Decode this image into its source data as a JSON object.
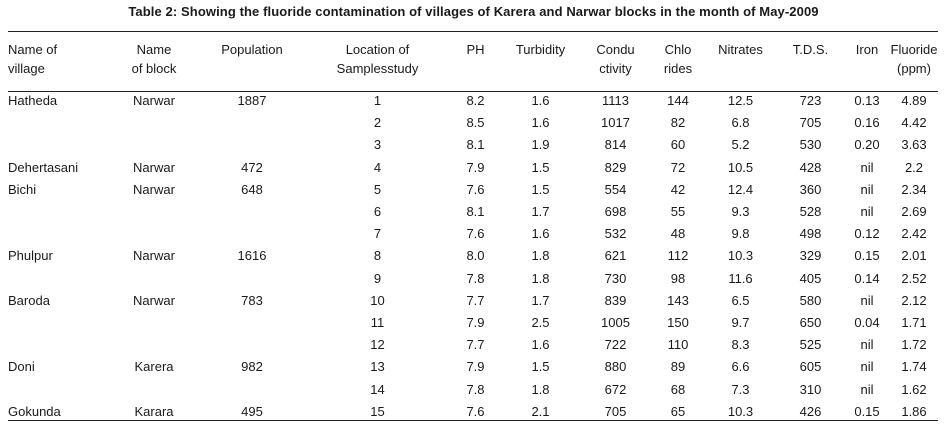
{
  "caption": "Table 2: Showing the fluoride contamination  of villages of Karera and Narwar blocks in the month of May-2009",
  "headers": {
    "village": [
      "Name of",
      "village"
    ],
    "block": [
      "Name",
      "of block"
    ],
    "population": [
      "Population",
      ""
    ],
    "location": [
      "Location of",
      "Samplesstudy"
    ],
    "ph": [
      "PH",
      ""
    ],
    "turbidity": [
      "Turbidity",
      ""
    ],
    "conductivity": [
      "Condu",
      "ctivity"
    ],
    "chlorides": [
      "Chlo",
      "rides"
    ],
    "nitrates": [
      "Nitrates",
      ""
    ],
    "tds": [
      "T.D.S.",
      ""
    ],
    "iron": [
      "Iron",
      ""
    ],
    "fluoride": [
      "Fluoride",
      "(ppm)"
    ]
  },
  "rows": [
    {
      "village": "Hatheda",
      "block": "Narwar",
      "population": "1887",
      "location": "1",
      "ph": "8.2",
      "turbidity": "1.6",
      "conductivity": "1113",
      "chlorides": "144",
      "nitrates": "12.5",
      "tds": "723",
      "iron": "0.13",
      "fluoride": "4.89"
    },
    {
      "village": "",
      "block": "",
      "population": "",
      "location": "2",
      "ph": "8.5",
      "turbidity": "1.6",
      "conductivity": "1017",
      "chlorides": "82",
      "nitrates": "6.8",
      "tds": "705",
      "iron": "0.16",
      "fluoride": "4.42"
    },
    {
      "village": "",
      "block": "",
      "population": "",
      "location": "3",
      "ph": "8.1",
      "turbidity": "1.9",
      "conductivity": "814",
      "chlorides": "60",
      "nitrates": "5.2",
      "tds": "530",
      "iron": "0.20",
      "fluoride": "3.63"
    },
    {
      "village": "Dehertasani",
      "block": "Narwar",
      "population": "472",
      "location": "4",
      "ph": "7.9",
      "turbidity": "1.5",
      "conductivity": "829",
      "chlorides": "72",
      "nitrates": "10.5",
      "tds": "428",
      "iron": "nil",
      "fluoride": "2.2"
    },
    {
      "village": "Bichi",
      "block": "Narwar",
      "population": "648",
      "location": "5",
      "ph": "7.6",
      "turbidity": "1.5",
      "conductivity": "554",
      "chlorides": "42",
      "nitrates": "12.4",
      "tds": "360",
      "iron": "nil",
      "fluoride": "2.34"
    },
    {
      "village": "",
      "block": "",
      "population": "",
      "location": "6",
      "ph": "8.1",
      "turbidity": "1.7",
      "conductivity": "698",
      "chlorides": "55",
      "nitrates": "9.3",
      "tds": "528",
      "iron": "nil",
      "fluoride": "2.69"
    },
    {
      "village": "",
      "block": "",
      "population": "",
      "location": "7",
      "ph": "7.6",
      "turbidity": "1.6",
      "conductivity": "532",
      "chlorides": "48",
      "nitrates": "9.8",
      "tds": "498",
      "iron": "0.12",
      "fluoride": "2.42"
    },
    {
      "village": "Phulpur",
      "block": "Narwar",
      "population": "1616",
      "location": "8",
      "ph": "8.0",
      "turbidity": "1.8",
      "conductivity": "621",
      "chlorides": "112",
      "nitrates": "10.3",
      "tds": "329",
      "iron": "0.15",
      "fluoride": "2.01"
    },
    {
      "village": "",
      "block": "",
      "population": "",
      "location": "9",
      "ph": "7.8",
      "turbidity": "1.8",
      "conductivity": "730",
      "chlorides": "98",
      "nitrates": "11.6",
      "tds": "405",
      "iron": "0.14",
      "fluoride": "2.52"
    },
    {
      "village": "Baroda",
      "block": "Narwar",
      "population": "783",
      "location": "10",
      "ph": "7.7",
      "turbidity": "1.7",
      "conductivity": "839",
      "chlorides": "143",
      "nitrates": "6.5",
      "tds": "580",
      "iron": "nil",
      "fluoride": "2.12"
    },
    {
      "village": "",
      "block": "",
      "population": "",
      "location": "11",
      "ph": "7.9",
      "turbidity": "2.5",
      "conductivity": "1005",
      "chlorides": "150",
      "nitrates": "9.7",
      "tds": "650",
      "iron": "0.04",
      "fluoride": "1.71"
    },
    {
      "village": "",
      "block": "",
      "population": "",
      "location": "12",
      "ph": "7.7",
      "turbidity": "1.6",
      "conductivity": "722",
      "chlorides": "110",
      "nitrates": "8.3",
      "tds": "525",
      "iron": "nil",
      "fluoride": "1.72"
    },
    {
      "village": "Doni",
      "block": "Karera",
      "population": "982",
      "location": "13",
      "ph": "7.9",
      "turbidity": "1.5",
      "conductivity": "880",
      "chlorides": "89",
      "nitrates": "6.6",
      "tds": "605",
      "iron": "nil",
      "fluoride": "1.74"
    },
    {
      "village": "",
      "block": "",
      "population": "",
      "location": "14",
      "ph": "7.8",
      "turbidity": "1.8",
      "conductivity": "672",
      "chlorides": "68",
      "nitrates": "7.3",
      "tds": "310",
      "iron": "nil",
      "fluoride": "1.62"
    },
    {
      "village": "Gokunda",
      "block": "Karara",
      "population": "495",
      "location": "15",
      "ph": "7.6",
      "turbidity": "2.1",
      "conductivity": "705",
      "chlorides": "65",
      "nitrates": "10.3",
      "tds": "426",
      "iron": "0.15",
      "fluoride": "1.86"
    }
  ]
}
